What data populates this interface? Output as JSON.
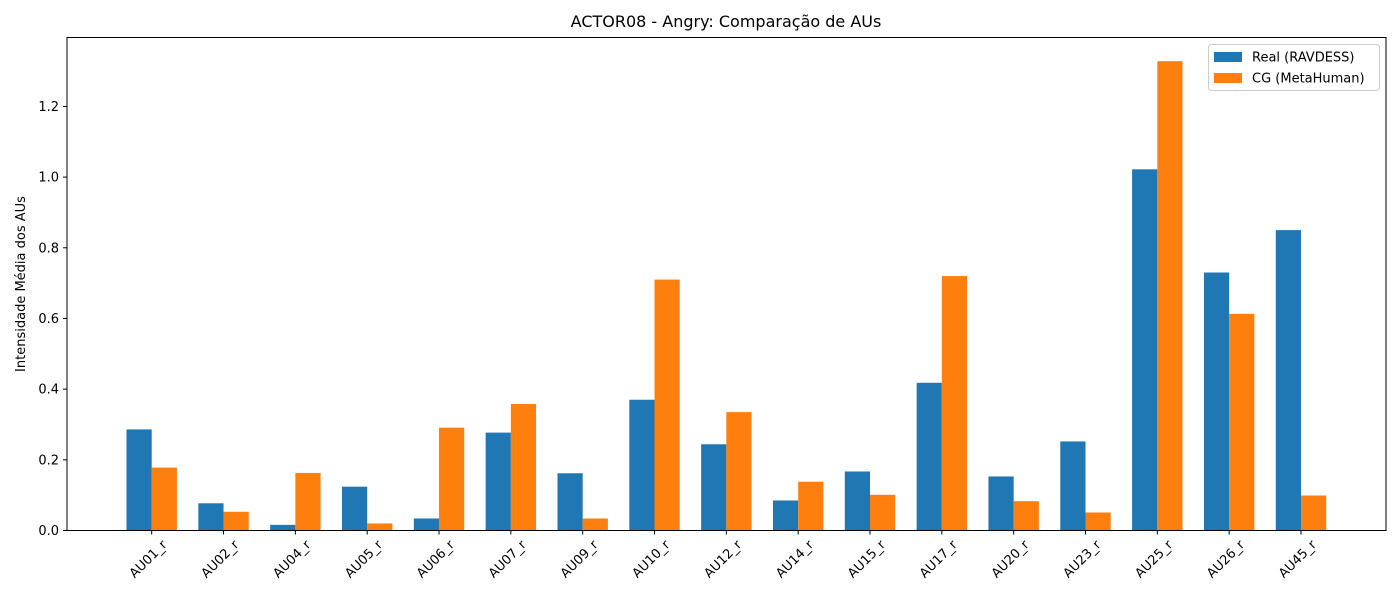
{
  "chart_data": {
    "type": "bar",
    "title": "ACTOR08 - Angry: Comparação de AUs",
    "xlabel": "",
    "ylabel": "Intensidade Média dos AUs",
    "ylim": [
      0,
      1.395
    ],
    "yticks": [
      "0.0",
      "0.2",
      "0.4",
      "0.6",
      "0.8",
      "1.0",
      "1.2"
    ],
    "categories": [
      "AU01_r",
      "AU02_r",
      "AU04_r",
      "AU05_r",
      "AU06_r",
      "AU07_r",
      "AU09_r",
      "AU10_r",
      "AU12_r",
      "AU14_r",
      "AU15_r",
      "AU17_r",
      "AU20_r",
      "AU23_r",
      "AU25_r",
      "AU26_r",
      "AU45_r"
    ],
    "series": [
      {
        "name": "Real (RAVDESS)",
        "color": "#1f77b4",
        "values": [
          0.286,
          0.077,
          0.016,
          0.124,
          0.034,
          0.277,
          0.162,
          0.37,
          0.244,
          0.085,
          0.167,
          0.418,
          0.153,
          0.252,
          1.022,
          0.73,
          0.85
        ]
      },
      {
        "name": "CG (MetaHuman)",
        "color": "#ff7f0e",
        "values": [
          0.178,
          0.053,
          0.163,
          0.02,
          0.291,
          0.358,
          0.034,
          0.71,
          0.335,
          0.138,
          0.101,
          0.72,
          0.083,
          0.051,
          1.328,
          0.613,
          0.099
        ]
      }
    ],
    "legend_position": "top-right",
    "grid": false
  }
}
